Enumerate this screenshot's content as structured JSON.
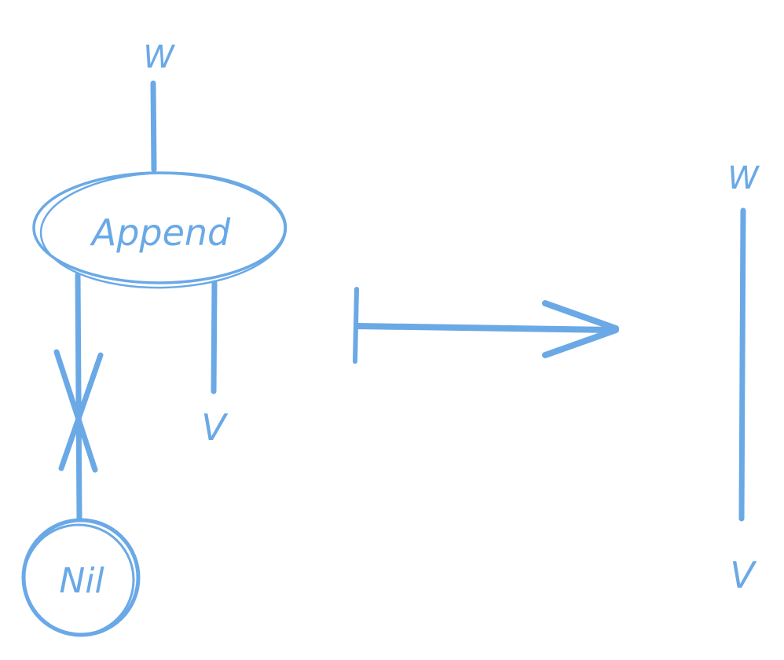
{
  "colors": {
    "ink": "#6aa9e6",
    "background": "#ffffff"
  },
  "left_graph": {
    "top_wire_label": "W",
    "node_append_label": "Append",
    "right_wire_label": "V",
    "node_nil_label": "Nil",
    "crossed_wire": "crossed-out edge between Append and Nil"
  },
  "transition": {
    "symbol": "maps-to arrow"
  },
  "right_graph": {
    "top_wire_label": "W",
    "bottom_wire_label": "V"
  }
}
